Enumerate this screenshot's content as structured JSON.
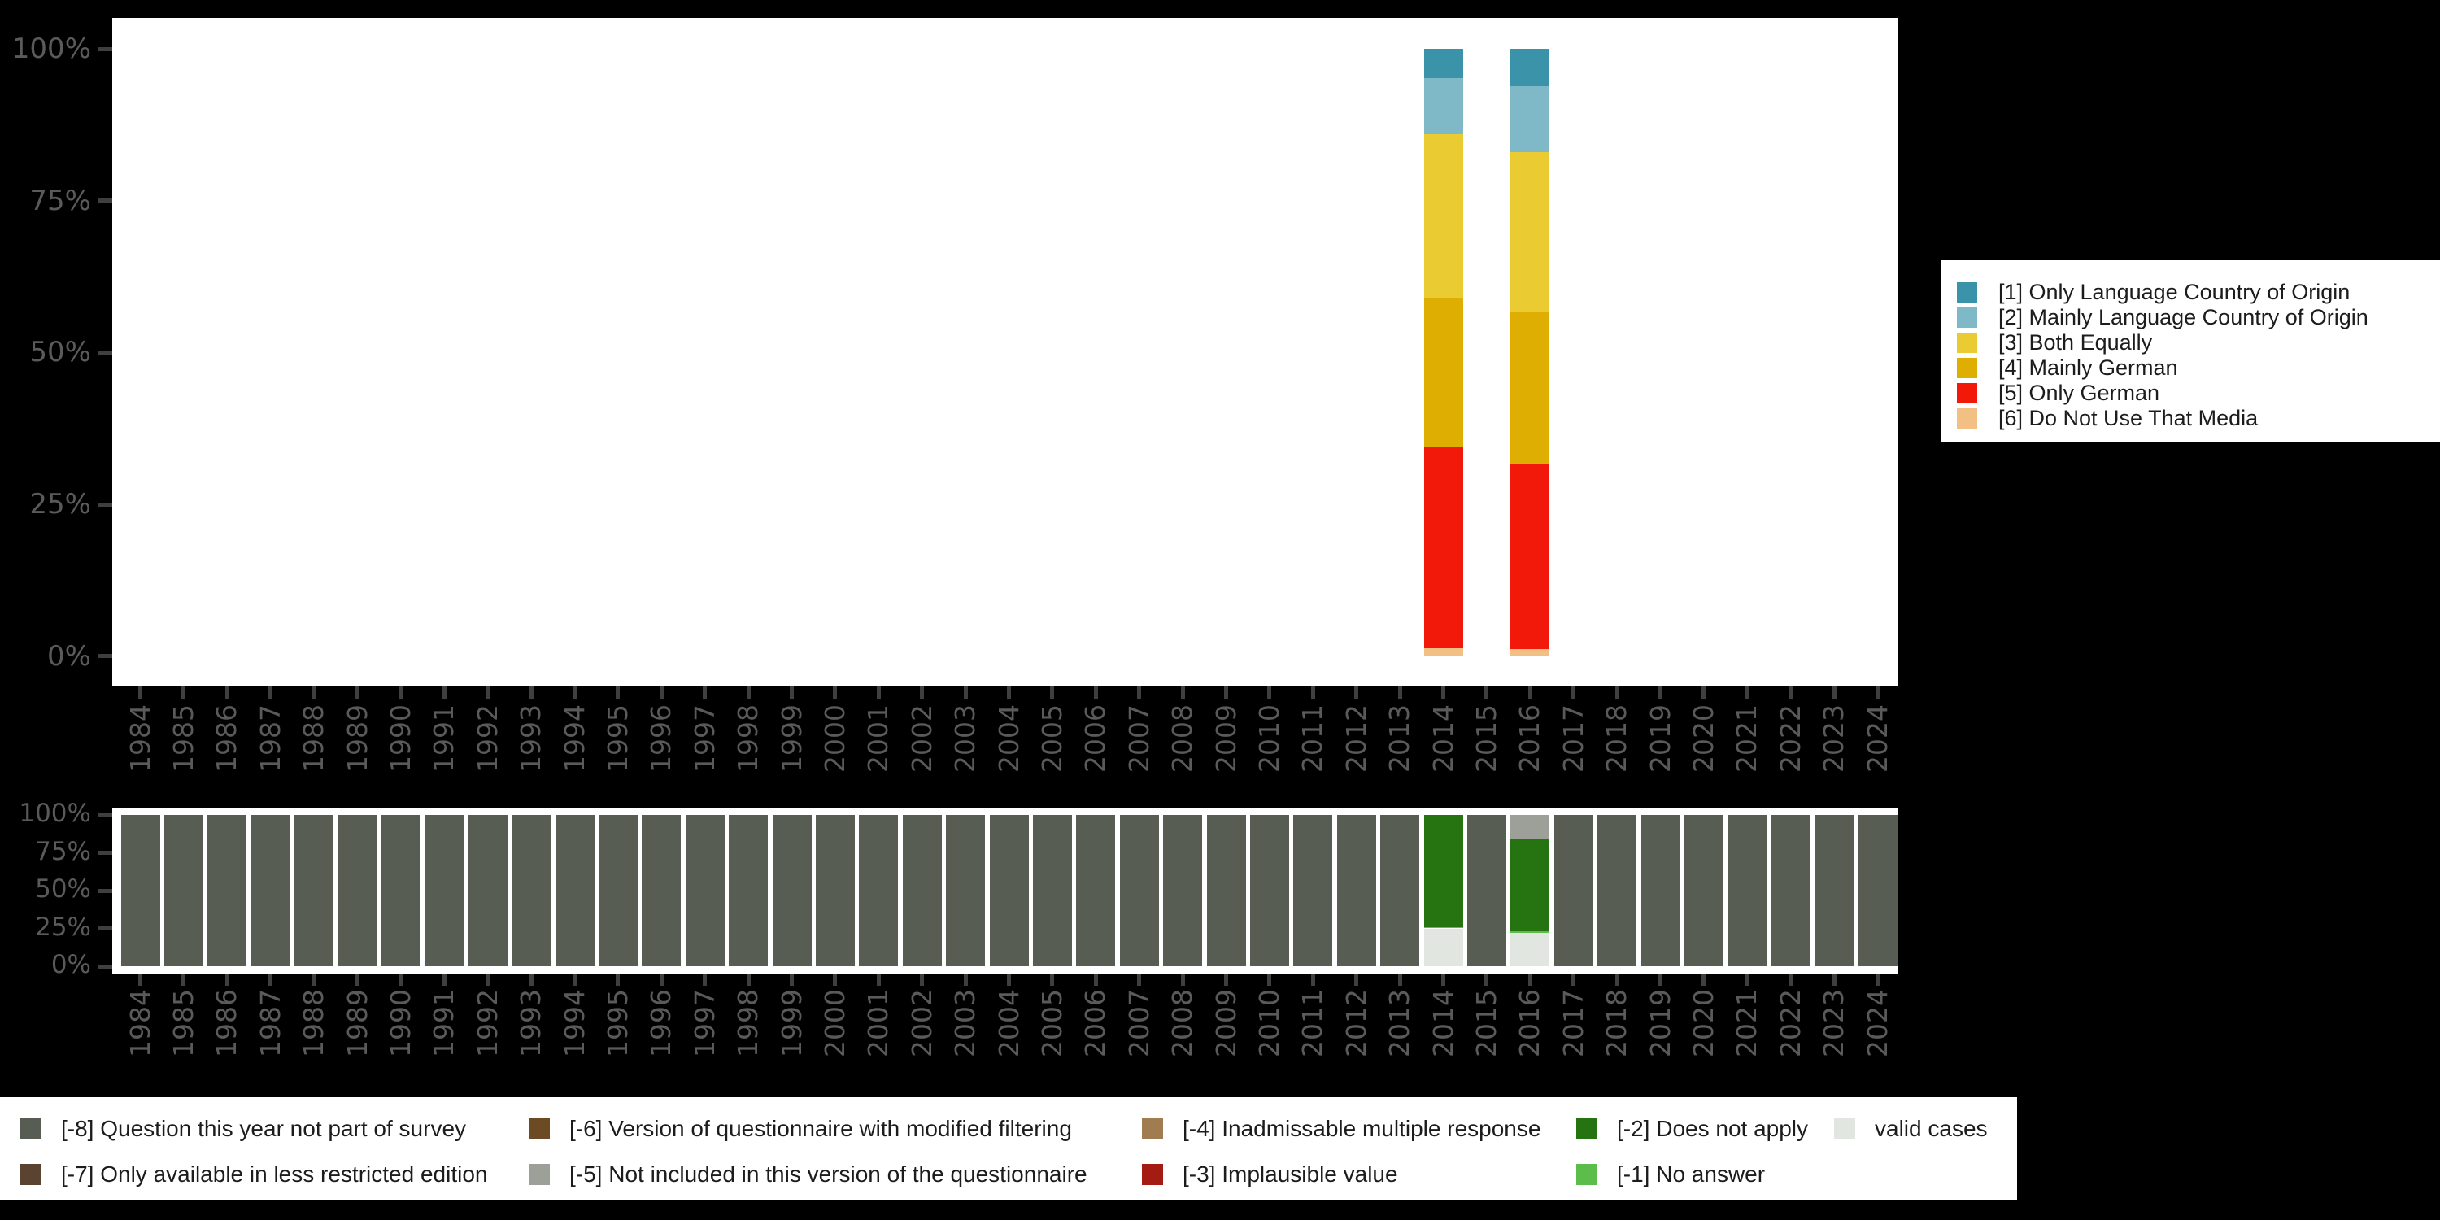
{
  "style": {
    "background": "#000000",
    "panel_color": "#ffffff",
    "axis_label_color": "#5a5a5a",
    "tick_color": "#3f3f3f",
    "legend_text_color": "#1c1c1c"
  },
  "chart_data": [
    {
      "id": "language-media-use",
      "type": "bar",
      "stacked": true,
      "unit": "percent",
      "title": "",
      "x_categories": [
        "1984",
        "1985",
        "1986",
        "1987",
        "1988",
        "1989",
        "1990",
        "1991",
        "1992",
        "1993",
        "1994",
        "1995",
        "1996",
        "1997",
        "1998",
        "1999",
        "2000",
        "2001",
        "2002",
        "2003",
        "2004",
        "2005",
        "2006",
        "2007",
        "2008",
        "2009",
        "2010",
        "2011",
        "2012",
        "2013",
        "2014",
        "2015",
        "2016",
        "2017",
        "2018",
        "2019",
        "2020",
        "2021",
        "2022",
        "2023",
        "2024"
      ],
      "y_ticks": [
        "100%",
        "75%",
        "50%",
        "25%",
        "0%"
      ],
      "ylim": [
        0,
        100
      ],
      "grid": false,
      "legend_position": "right",
      "series": [
        {
          "label": "[1] Only Language Country of Origin",
          "color": "#3A93A9"
        },
        {
          "label": "[2] Mainly Language Country of Origin",
          "color": "#7FB8C6"
        },
        {
          "label": "[3] Both Equally",
          "color": "#EACB31"
        },
        {
          "label": "[4] Mainly German",
          "color": "#DFAE02"
        },
        {
          "label": "[5] Only German",
          "color": "#F2190B"
        },
        {
          "label": "[6] Do Not Use That Media",
          "color": "#F2BF85"
        }
      ],
      "bars": {
        "2014": [
          4.8,
          9.2,
          27.0,
          24.6,
          33.1,
          1.3
        ],
        "2016": [
          6.2,
          10.8,
          26.2,
          25.2,
          30.5,
          1.1
        ]
      }
    },
    {
      "id": "missing-values",
      "type": "bar",
      "stacked": true,
      "unit": "percent",
      "title": "",
      "x_categories": [
        "1984",
        "1985",
        "1986",
        "1987",
        "1988",
        "1989",
        "1990",
        "1991",
        "1992",
        "1993",
        "1994",
        "1995",
        "1996",
        "1997",
        "1998",
        "1999",
        "2000",
        "2001",
        "2002",
        "2003",
        "2004",
        "2005",
        "2006",
        "2007",
        "2008",
        "2009",
        "2010",
        "2011",
        "2012",
        "2013",
        "2014",
        "2015",
        "2016",
        "2017",
        "2018",
        "2019",
        "2020",
        "2021",
        "2022",
        "2023",
        "2024"
      ],
      "y_ticks": [
        "100%",
        "75%",
        "50%",
        "25%",
        "0%"
      ],
      "ylim": [
        0,
        100
      ],
      "grid": false,
      "legend_position": "bottom",
      "series": [
        {
          "label": "[-8] Question this year not part of survey",
          "color": "#575D53"
        },
        {
          "label": "[-7] Only available in less restricted edition",
          "color": "#5B4332"
        },
        {
          "label": "[-6] Version of questionnaire with modified filtering",
          "color": "#6C4A23"
        },
        {
          "label": "[-5] Not included in this version of the questionnaire",
          "color": "#9CA098"
        },
        {
          "label": "[-4] Inadmissable multiple response",
          "color": "#A17C50"
        },
        {
          "label": "[-3] Implausible value",
          "color": "#A31B12"
        },
        {
          "label": "[-2] Does not apply",
          "color": "#267312"
        },
        {
          "label": "[-1] No answer",
          "color": "#5CBD4B"
        },
        {
          "label": "valid cases",
          "color": "#E2E6E0"
        }
      ],
      "default_bar": [
        [
          0,
          100
        ]
      ],
      "bars": {
        "2014": [
          [
            6,
            74
          ],
          [
            7,
            1
          ],
          [
            8,
            25
          ]
        ],
        "2016": [
          [
            3,
            16
          ],
          [
            6,
            61
          ],
          [
            7,
            1
          ],
          [
            8,
            22
          ]
        ]
      },
      "legend_columns": [
        [
          0,
          1
        ],
        [
          2,
          3
        ],
        [
          4,
          5
        ],
        [
          6,
          7
        ],
        [
          8
        ]
      ]
    }
  ]
}
